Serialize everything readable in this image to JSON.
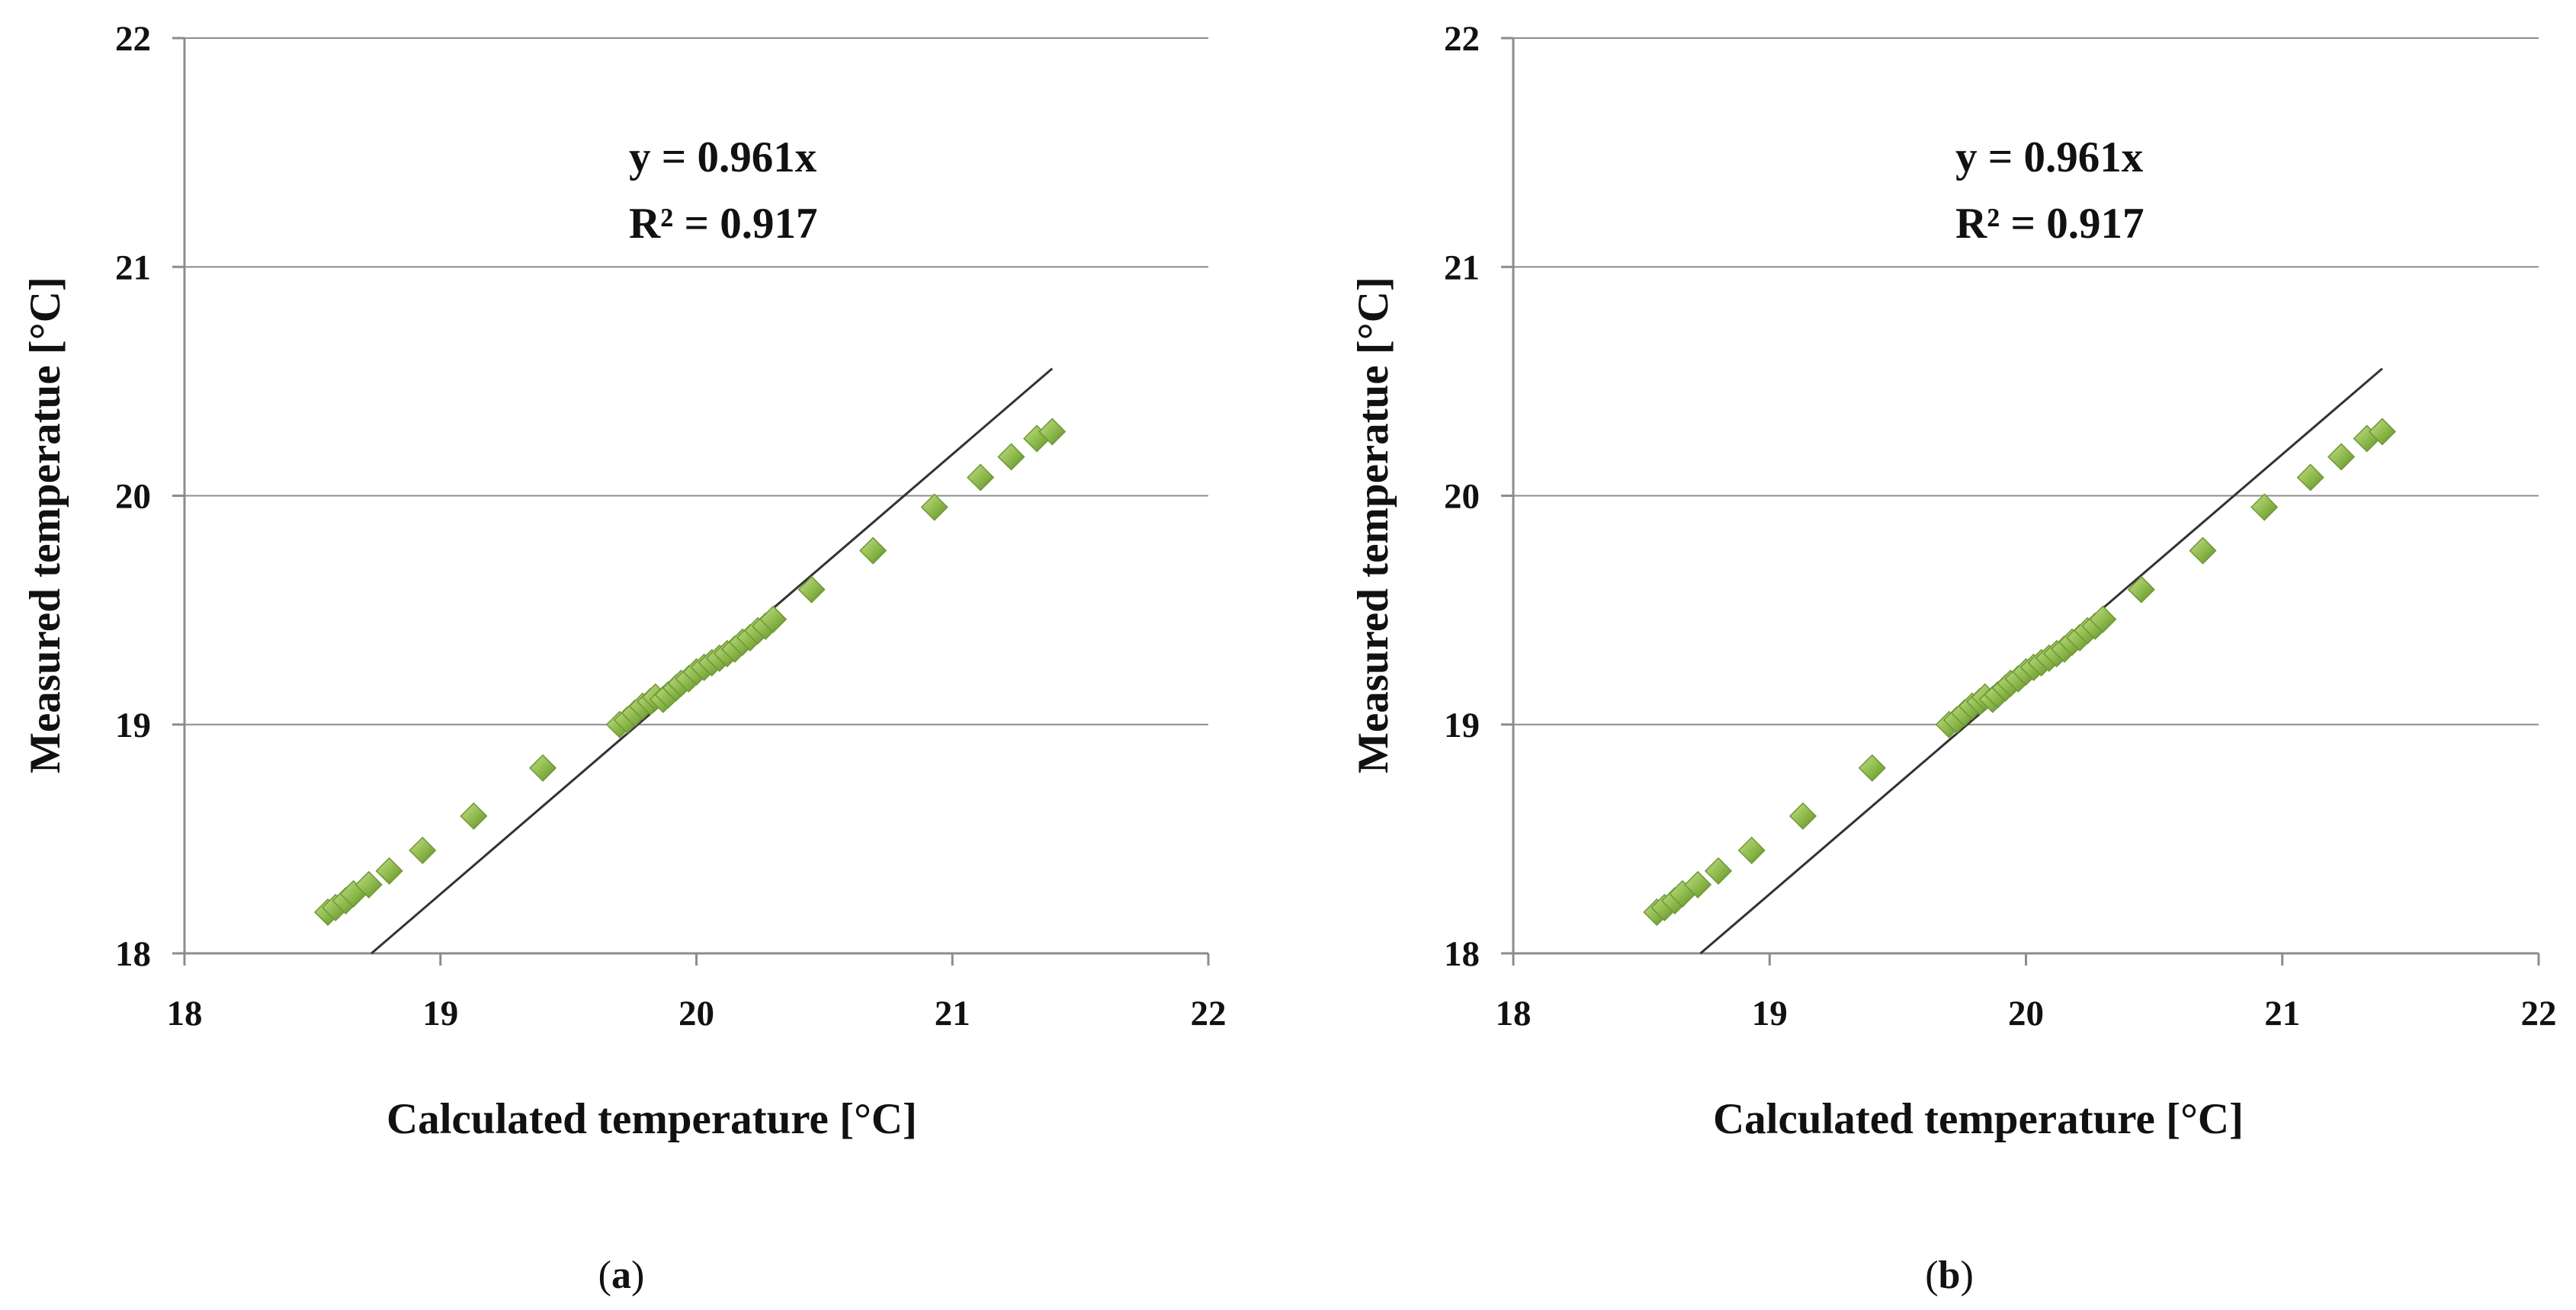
{
  "figure": {
    "panels": [
      {
        "caption_open": "(",
        "caption_letter": "a",
        "caption_close": ")"
      },
      {
        "caption_open": "(",
        "caption_letter": "b",
        "caption_close": ")"
      }
    ]
  },
  "chart_data": [
    {
      "type": "scatter",
      "panel": "a",
      "xlabel": "Calculated temperature [°C]",
      "ylabel": "Measured temperatue [°C]",
      "xlim": [
        18,
        22
      ],
      "ylim": [
        18,
        22
      ],
      "xticks": [
        "18",
        "19",
        "20",
        "21",
        "22"
      ],
      "yticks": [
        "18",
        "19",
        "20",
        "21",
        "22"
      ],
      "grid": "horizontal",
      "equation": "y = 0.961x",
      "r_squared": "R² = 0.917",
      "trendline": {
        "slope": 0.961,
        "x_range": [
          18.73,
          21.39
        ]
      },
      "marker_color": "#8CB84A",
      "x": [
        18.56,
        18.59,
        18.63,
        18.66,
        18.72,
        18.8,
        18.93,
        19.13,
        19.4,
        19.7,
        19.73,
        19.76,
        19.79,
        19.82,
        19.84,
        19.87,
        19.89,
        19.92,
        19.94,
        19.97,
        20.0,
        20.03,
        20.06,
        20.09,
        20.12,
        20.15,
        20.18,
        20.21,
        20.24,
        20.27,
        20.3,
        20.45,
        20.69,
        20.93,
        21.11,
        21.23,
        21.33,
        21.39
      ],
      "y": [
        18.18,
        18.2,
        18.23,
        18.26,
        18.3,
        18.36,
        18.45,
        18.6,
        18.81,
        19.0,
        19.02,
        19.05,
        19.08,
        19.1,
        19.12,
        19.11,
        19.13,
        19.16,
        19.18,
        19.2,
        19.23,
        19.25,
        19.27,
        19.29,
        19.31,
        19.33,
        19.36,
        19.38,
        19.41,
        19.43,
        19.46,
        19.59,
        19.76,
        19.95,
        20.08,
        20.17,
        20.25,
        20.28
      ]
    },
    {
      "type": "scatter",
      "panel": "b",
      "xlabel": "Calculated temperature [°C]",
      "ylabel": "Measured temperatue [°C]",
      "xlim": [
        18,
        22
      ],
      "ylim": [
        18,
        22
      ],
      "xticks": [
        "18",
        "19",
        "20",
        "21",
        "22"
      ],
      "yticks": [
        "18",
        "19",
        "20",
        "21",
        "22"
      ],
      "grid": "horizontal",
      "equation": "y = 0.961x",
      "r_squared": "R² = 0.917",
      "trendline": {
        "slope": 0.961,
        "x_range": [
          18.73,
          21.39
        ]
      },
      "marker_color": "#8CB84A",
      "x": [
        18.56,
        18.59,
        18.63,
        18.66,
        18.72,
        18.8,
        18.93,
        19.13,
        19.4,
        19.7,
        19.73,
        19.76,
        19.79,
        19.82,
        19.84,
        19.87,
        19.89,
        19.92,
        19.94,
        19.97,
        20.0,
        20.03,
        20.06,
        20.09,
        20.12,
        20.15,
        20.18,
        20.21,
        20.24,
        20.27,
        20.3,
        20.45,
        20.69,
        20.93,
        21.11,
        21.23,
        21.33,
        21.39
      ],
      "y": [
        18.18,
        18.2,
        18.23,
        18.26,
        18.3,
        18.36,
        18.45,
        18.6,
        18.81,
        19.0,
        19.02,
        19.05,
        19.08,
        19.1,
        19.12,
        19.11,
        19.13,
        19.16,
        19.18,
        19.2,
        19.23,
        19.25,
        19.27,
        19.29,
        19.31,
        19.33,
        19.36,
        19.38,
        19.41,
        19.43,
        19.46,
        19.59,
        19.76,
        19.95,
        20.08,
        20.17,
        20.25,
        20.28
      ]
    }
  ]
}
